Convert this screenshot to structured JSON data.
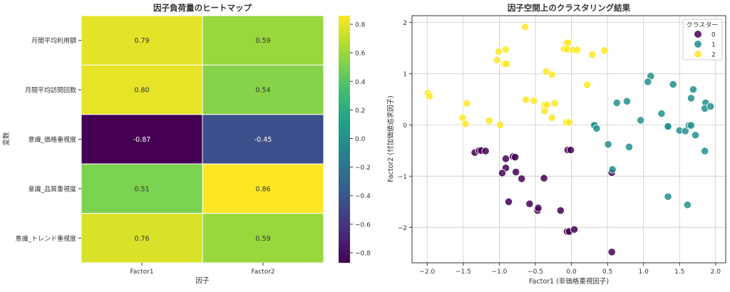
{
  "chart_data": [
    {
      "type": "heatmap",
      "title": "因子負荷量のヒートマップ",
      "xlabel": "因子",
      "ylabel": "変数",
      "columns": [
        "Factor1",
        "Factor2"
      ],
      "rows": [
        "月間平均利用額",
        "月間平均訪問回数",
        "意識_価格重視度",
        "意識_品質重視度",
        "意識_トレンド重視度"
      ],
      "values": [
        [
          0.79,
          0.59
        ],
        [
          0.8,
          0.54
        ],
        [
          -0.87,
          -0.45
        ],
        [
          0.51,
          0.86
        ],
        [
          0.76,
          0.59
        ]
      ],
      "value_labels": [
        [
          "0.79",
          "0.59"
        ],
        [
          "0.80",
          "0.54"
        ],
        [
          "-0.87",
          "-0.45"
        ],
        [
          "0.51",
          "0.86"
        ],
        [
          "0.76",
          "0.59"
        ]
      ],
      "colormap": "viridis",
      "vmin": -0.87,
      "vmax": 0.86,
      "colorbar_ticks": [
        0.8,
        0.6,
        0.4,
        0.2,
        0.0,
        -0.2,
        -0.4,
        -0.6,
        -0.8
      ],
      "colorbar_tick_labels": [
        "0.8",
        "0.6",
        "0.4",
        "0.2",
        "0.0",
        "−0.2",
        "−0.4",
        "−0.6",
        "−0.8"
      ]
    },
    {
      "type": "scatter",
      "title": "因子空間上のクラスタリング結果",
      "xlabel": "Factor1 (非価格重視因子)",
      "ylabel": "Factor2 (付加価値追求因子)",
      "xlim": [
        -2.21,
        2.14
      ],
      "ylim": [
        -2.69,
        2.13
      ],
      "xticks": [
        -2.0,
        -1.5,
        -1.0,
        -0.5,
        0.0,
        0.5,
        1.0,
        1.5,
        2.0
      ],
      "xtick_labels": [
        "−2.0",
        "−1.5",
        "−1.0",
        "−0.5",
        "0.0",
        "0.5",
        "1.0",
        "1.5",
        "2.0"
      ],
      "yticks": [
        2,
        1,
        0,
        -1,
        -2
      ],
      "ytick_labels": [
        "2",
        "1",
        "0",
        "−1",
        "−2"
      ],
      "grid": true,
      "legend": {
        "title": "クラスター",
        "placement": "top-right",
        "labels": [
          "0",
          "1",
          "2"
        ]
      },
      "series": [
        {
          "name": "0",
          "color": "#440154",
          "points": [
            [
              -1.34,
              -0.54
            ],
            [
              -1.28,
              -0.5
            ],
            [
              -1.25,
              -0.5
            ],
            [
              -1.19,
              -0.51
            ],
            [
              -0.05,
              -0.49
            ],
            [
              -0.01,
              -0.49
            ],
            [
              -0.91,
              -0.66
            ],
            [
              -0.81,
              -0.62
            ],
            [
              -0.78,
              -0.63
            ],
            [
              -0.91,
              -0.84
            ],
            [
              -0.96,
              -0.94
            ],
            [
              -0.77,
              -0.92
            ],
            [
              -0.69,
              -1.05
            ],
            [
              -0.38,
              -1.04
            ],
            [
              0.56,
              -0.93
            ],
            [
              -0.87,
              -1.5
            ],
            [
              -0.58,
              -1.54
            ],
            [
              -0.47,
              -1.67
            ],
            [
              -0.46,
              -1.62
            ],
            [
              -0.15,
              -1.67
            ],
            [
              -0.06,
              -2.08
            ],
            [
              -0.03,
              -2.08
            ],
            [
              0.04,
              -2.04
            ],
            [
              0.56,
              -2.48
            ]
          ]
        },
        {
          "name": "1",
          "color": "#21918c",
          "points": [
            [
              1.1,
              0.95
            ],
            [
              1.06,
              0.84
            ],
            [
              1.41,
              0.79
            ],
            [
              1.69,
              0.69
            ],
            [
              1.66,
              0.52
            ],
            [
              1.86,
              0.43
            ],
            [
              1.85,
              0.32
            ],
            [
              1.93,
              0.36
            ],
            [
              0.63,
              0.43
            ],
            [
              0.77,
              0.46
            ],
            [
              0.96,
              0.09
            ],
            [
              1.25,
              0.22
            ],
            [
              0.31,
              0.0
            ],
            [
              0.32,
              -0.01
            ],
            [
              0.35,
              -0.07
            ],
            [
              1.33,
              -0.03
            ],
            [
              1.34,
              -0.03
            ],
            [
              1.5,
              -0.11
            ],
            [
              1.58,
              -0.12
            ],
            [
              1.63,
              -0.01
            ],
            [
              1.66,
              -0.01
            ],
            [
              1.72,
              -0.2
            ],
            [
              0.51,
              -0.38
            ],
            [
              0.8,
              -0.43
            ],
            [
              1.85,
              -0.51
            ],
            [
              0.57,
              -0.87
            ],
            [
              1.34,
              -1.4
            ],
            [
              1.61,
              -1.56
            ]
          ]
        },
        {
          "name": "2",
          "color": "#fde725",
          "points": [
            [
              -0.64,
              1.91
            ],
            [
              -0.07,
              1.6
            ],
            [
              -0.05,
              1.6
            ],
            [
              -0.1,
              1.48
            ],
            [
              -0.06,
              1.48
            ],
            [
              0.02,
              1.46
            ],
            [
              0.08,
              1.46
            ],
            [
              0.46,
              1.45
            ],
            [
              0.29,
              1.37
            ],
            [
              -1.01,
              1.43
            ],
            [
              -0.91,
              1.47
            ],
            [
              -1.03,
              1.26
            ],
            [
              -0.93,
              1.19
            ],
            [
              -0.9,
              1.19
            ],
            [
              -0.35,
              1.04
            ],
            [
              -0.27,
              0.98
            ],
            [
              0.22,
              0.78
            ],
            [
              -1.99,
              0.62
            ],
            [
              -1.97,
              0.56
            ],
            [
              -0.63,
              0.49
            ],
            [
              -0.52,
              0.47
            ],
            [
              -1.45,
              0.42
            ],
            [
              -0.37,
              0.39
            ],
            [
              -0.34,
              0.39
            ],
            [
              -0.23,
              0.42
            ],
            [
              -0.37,
              0.27
            ],
            [
              -0.27,
              0.14
            ],
            [
              -1.51,
              0.14
            ],
            [
              -1.47,
              0.02
            ],
            [
              -1.14,
              0.08
            ],
            [
              -0.99,
              0.0
            ],
            [
              -0.07,
              0.05
            ],
            [
              -0.03,
              0.05
            ]
          ]
        }
      ]
    }
  ]
}
